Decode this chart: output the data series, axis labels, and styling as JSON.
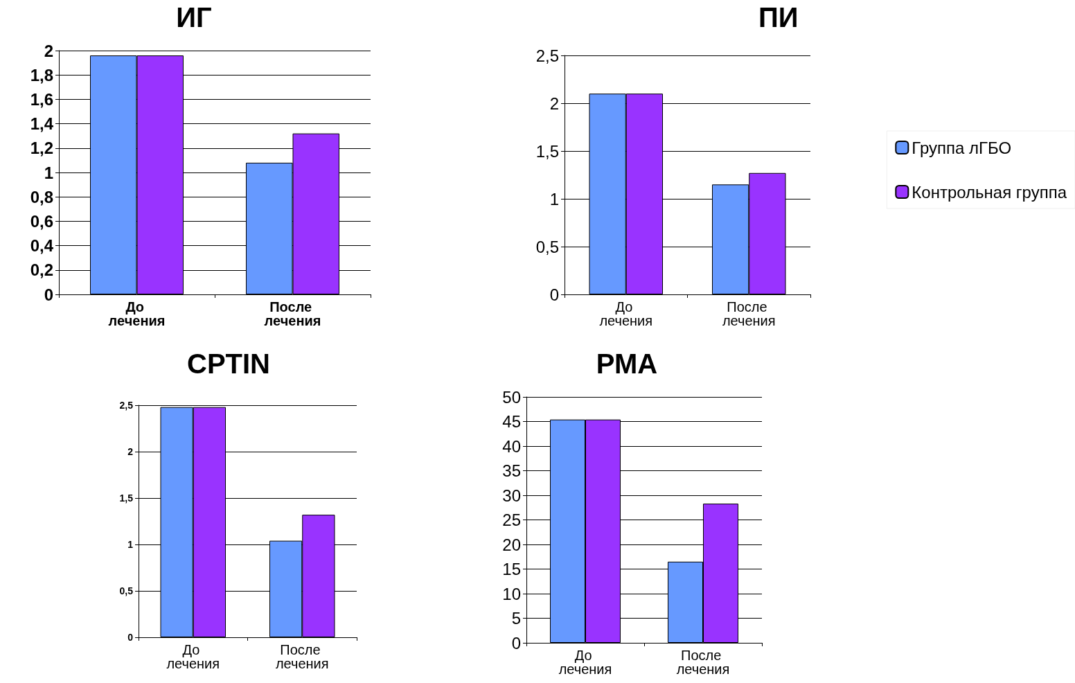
{
  "chart_data": [
    {
      "type": "bar",
      "title": "ИГ",
      "categories": [
        "До лечения",
        "После лечения"
      ],
      "series": [
        {
          "color": "#6699ff",
          "values": [
            1.96,
            1.08
          ]
        },
        {
          "color": "#9933ff",
          "values": [
            1.96,
            1.32
          ]
        }
      ],
      "ylim": [
        0,
        2
      ],
      "yticks": [
        0,
        {
          "value": 0.2,
          "label": "0,2"
        },
        {
          "value": 0.4,
          "label": "0,4"
        },
        {
          "value": 0.6,
          "label": "0,6"
        },
        {
          "value": 0.8,
          "label": "0,8"
        },
        1,
        {
          "value": 1.2,
          "label": "1,2"
        },
        {
          "value": 1.4,
          "label": "1,4"
        },
        {
          "value": 1.6,
          "label": "1,6"
        },
        {
          "value": 1.8,
          "label": "1,8"
        },
        2
      ],
      "grid": "y",
      "legend": false
    },
    {
      "type": "bar",
      "title": "ПИ",
      "categories": [
        "До лечения",
        "После лечения"
      ],
      "series": [
        {
          "name": "Группа лГБО",
          "color": "#6699ff",
          "values": [
            2.1,
            1.15
          ]
        },
        {
          "name": "Контрольная группа",
          "color": "#9933ff",
          "values": [
            2.1,
            1.27
          ]
        }
      ],
      "ylim": [
        0,
        2.5
      ],
      "yticks": [
        0,
        {
          "value": 0.5,
          "label": "0,5"
        },
        1,
        {
          "value": 1.5,
          "label": "1,5"
        },
        2,
        {
          "value": 2.5,
          "label": "2,5"
        }
      ],
      "grid": "y",
      "legend": "right"
    },
    {
      "type": "bar",
      "title": "CPTIN",
      "categories": [
        "До лечения",
        "После лечения"
      ],
      "series": [
        {
          "color": "#6699ff",
          "values": [
            2.48,
            1.04
          ]
        },
        {
          "color": "#9933ff",
          "values": [
            2.48,
            1.32
          ]
        }
      ],
      "ylim": [
        0,
        2.5
      ],
      "yticks": [
        0,
        {
          "value": 0.5,
          "label": "0,5"
        },
        1,
        {
          "value": 1.5,
          "label": "1,5"
        },
        2,
        {
          "value": 2.5,
          "label": "2,5"
        }
      ],
      "grid": "y",
      "legend": false
    },
    {
      "type": "bar",
      "title": "РМА",
      "categories": [
        "До лечения",
        "После лечения"
      ],
      "series": [
        {
          "color": "#6699ff",
          "values": [
            45.4,
            16.5
          ]
        },
        {
          "color": "#9933ff",
          "values": [
            45.4,
            28.3
          ]
        }
      ],
      "ylim": [
        0,
        50
      ],
      "yticks": [
        0,
        5,
        10,
        15,
        20,
        25,
        30,
        35,
        40,
        45,
        50
      ],
      "grid": "y",
      "legend": false
    }
  ]
}
